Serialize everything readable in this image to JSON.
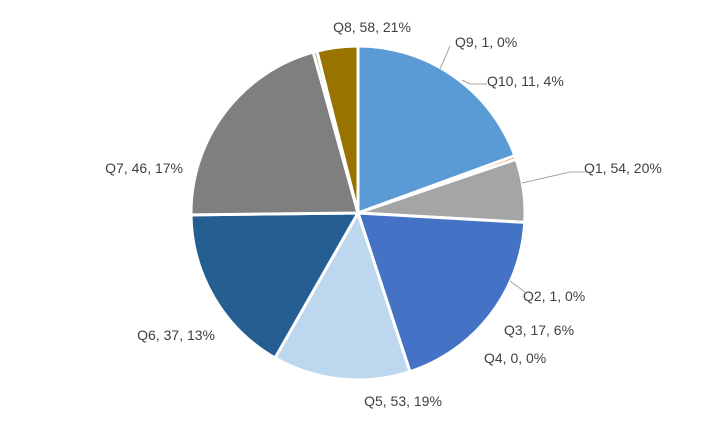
{
  "chart_data": {
    "type": "pie",
    "title": "",
    "start_angle_deg": 90,
    "direction": "clockwise",
    "slices": [
      {
        "label": "Q1, 54, 20%",
        "category": "Q1",
        "value": 54,
        "percent": "20%",
        "color": "#5b9bd5"
      },
      {
        "label": "Q2, 1, 0%",
        "category": "Q2",
        "value": 1,
        "percent": "0%",
        "color": "#ed7d31"
      },
      {
        "label": "Q3, 17, 6%",
        "category": "Q3",
        "value": 17,
        "percent": "6%",
        "color": "#a5a5a5"
      },
      {
        "label": "Q4, 0, 0%",
        "category": "Q4",
        "value": 0,
        "percent": "0%",
        "color": "#ffc000"
      },
      {
        "label": "Q5, 53, 19%",
        "category": "Q5",
        "value": 53,
        "percent": "19%",
        "color": "#4472c4"
      },
      {
        "label": "Q6, 37, 13%",
        "category": "Q6",
        "value": 37,
        "percent": "13%",
        "color": "#bdd7ee"
      },
      {
        "label": "Q7, 46, 17%",
        "category": "Q7",
        "value": 46,
        "percent": "17%",
        "color": "#255e91"
      },
      {
        "label": "Q8, 58, 21%",
        "category": "Q8",
        "value": 58,
        "percent": "21%",
        "color": "#7f7f7f"
      },
      {
        "label": "Q9, 1, 0%",
        "category": "Q9",
        "value": 1,
        "percent": "0%",
        "color": "#70ad47"
      },
      {
        "label": "Q10, 11, 4%",
        "category": "Q10",
        "value": 11,
        "percent": "4%",
        "color": "#997300"
      }
    ]
  }
}
